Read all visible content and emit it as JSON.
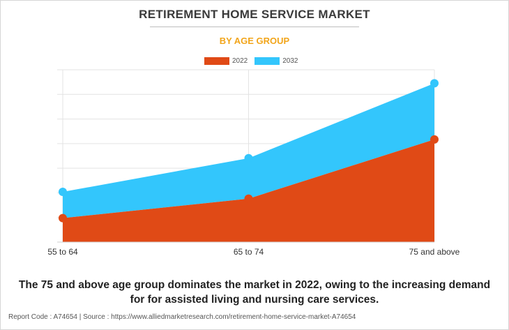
{
  "title": "RETIREMENT HOME SERVICE MARKET",
  "subtitle": "BY AGE GROUP",
  "caption": {
    "line1": "The 75 and above age group dominates the market in 2022, owing to the increasing demand",
    "line2": "for for assisted living and nursing care services."
  },
  "footer": "Report Code : A74654  |  Source : https://www.alliedmarketresearch.com/retirement-home-service-market-A74654",
  "colors": {
    "series_2022": "#e04a16",
    "series_2032": "#33c6fc",
    "grid": "#e3e3e3"
  },
  "chart_data": {
    "type": "area",
    "stacked": true,
    "categories": [
      "55 to 64",
      "65 to 74",
      "75 and above"
    ],
    "series": [
      {
        "name": "2022",
        "values": [
          32,
          58,
          137
        ]
      },
      {
        "name": "2032",
        "values": [
          35,
          54,
          75
        ]
      }
    ],
    "ylim": [
      0,
      230
    ],
    "grid": true,
    "legend_position": "top-center",
    "xlabel": "",
    "ylabel": ""
  }
}
